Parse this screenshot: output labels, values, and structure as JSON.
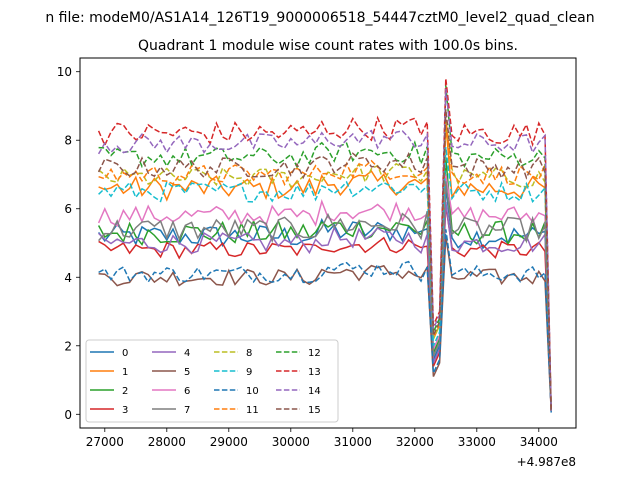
{
  "chart_data": {
    "type": "line",
    "suptitle": "n file: modeM0/AS1A14_126T19_9000006518_54447cztM0_level2_quad_clean",
    "title": "Quadrant 1 module wise count rates with 100.0s bins.",
    "xlabel": "",
    "ylabel": "",
    "x_offset_label": "+4.987e8",
    "xlim": [
      26600,
      34600
    ],
    "ylim": [
      -0.4,
      10.4
    ],
    "xticks": [
      27000,
      28000,
      29000,
      30000,
      31000,
      32000,
      33000,
      34000
    ],
    "xtick_labels": [
      "27000",
      "28000",
      "29000",
      "30000",
      "31000",
      "32000",
      "33000",
      "34000"
    ],
    "yticks": [
      0,
      2,
      4,
      6,
      8,
      10
    ],
    "ytick_labels": [
      "0",
      "2",
      "4",
      "6",
      "8",
      "10"
    ],
    "grid": false,
    "legend_position": "lower-left",
    "legend_columns": 4,
    "x_start": 26900,
    "x_step": 100,
    "dip_index": 54,
    "spike_index": 56,
    "series": [
      {
        "name": "0",
        "style": "solid",
        "color": "#1f77b4",
        "level": 5.2,
        "amp": 0.35,
        "dip": 1.6,
        "spike": 6.6,
        "end": 0.05
      },
      {
        "name": "1",
        "style": "solid",
        "color": "#ff7f0e",
        "level": 6.6,
        "amp": 0.35,
        "dip": 2.2,
        "spike": 8.5,
        "end": 0.1
      },
      {
        "name": "2",
        "style": "solid",
        "color": "#2ca02c",
        "level": 5.3,
        "amp": 0.35,
        "dip": 1.8,
        "spike": 7.5,
        "end": 0.1
      },
      {
        "name": "3",
        "style": "solid",
        "color": "#d62728",
        "level": 4.8,
        "amp": 0.25,
        "dip": 1.4,
        "spike": 6.1,
        "end": 0.1
      },
      {
        "name": "4",
        "style": "solid",
        "color": "#9467bd",
        "level": 5.0,
        "amp": 0.3,
        "dip": 1.5,
        "spike": 6.2,
        "end": 0.1
      },
      {
        "name": "5",
        "style": "solid",
        "color": "#8c564b",
        "level": 4.0,
        "amp": 0.25,
        "dip": 1.1,
        "spike": 5.2,
        "end": 0.1
      },
      {
        "name": "6",
        "style": "solid",
        "color": "#e377c2",
        "level": 5.8,
        "amp": 0.3,
        "dip": 1.9,
        "spike": 7.0,
        "end": 0.1
      },
      {
        "name": "7",
        "style": "solid",
        "color": "#7f7f7f",
        "level": 5.4,
        "amp": 0.35,
        "dip": 1.7,
        "spike": 6.8,
        "end": 0.1
      },
      {
        "name": "8",
        "style": "dashed",
        "color": "#bcbd22",
        "level": 6.9,
        "amp": 0.3,
        "dip": 2.2,
        "spike": 8.6,
        "end": 0.1
      },
      {
        "name": "9",
        "style": "dashed",
        "color": "#17becf",
        "level": 6.5,
        "amp": 0.3,
        "dip": 2.0,
        "spike": 7.8,
        "end": 0.1
      },
      {
        "name": "10",
        "style": "dashed",
        "color": "#1f77b4",
        "level": 4.1,
        "amp": 0.25,
        "dip": 1.2,
        "spike": 5.4,
        "end": 0.1
      },
      {
        "name": "11",
        "style": "dashed",
        "color": "#ff7f0e",
        "level": 7.0,
        "amp": 0.3,
        "dip": 2.3,
        "spike": 8.6,
        "end": 0.1
      },
      {
        "name": "12",
        "style": "dashed",
        "color": "#2ca02c",
        "level": 7.5,
        "amp": 0.3,
        "dip": 2.4,
        "spike": 9.6,
        "end": 0.1
      },
      {
        "name": "13",
        "style": "dashed",
        "color": "#d62728",
        "level": 8.2,
        "amp": 0.35,
        "dip": 2.6,
        "spike": 9.8,
        "end": 0.1
      },
      {
        "name": "14",
        "style": "dashed",
        "color": "#9467bd",
        "level": 7.9,
        "amp": 0.3,
        "dip": 2.5,
        "spike": 9.5,
        "end": 0.1
      },
      {
        "name": "15",
        "style": "dashed",
        "color": "#8c564b",
        "level": 7.2,
        "amp": 0.3,
        "dip": 2.3,
        "spike": 8.9,
        "end": 0.1
      }
    ]
  }
}
